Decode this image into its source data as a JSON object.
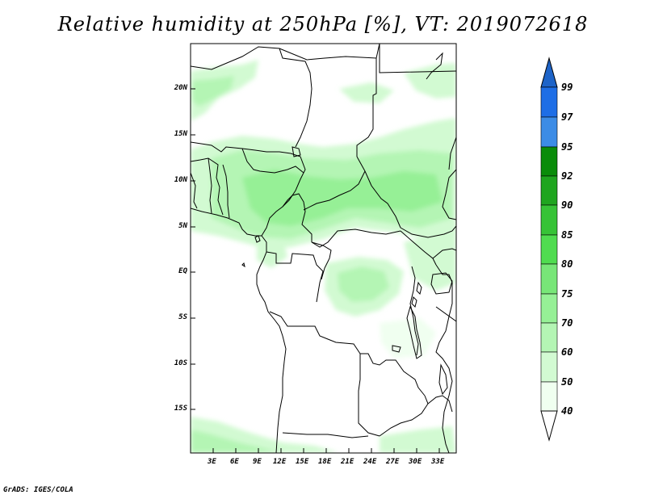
{
  "title": "Relative humidity at 250hPa [%], VT: 2019072618",
  "credit": "GrADS: IGES/COLA",
  "map": {
    "lat_labels": [
      "20N",
      "15N",
      "10N",
      "5N",
      "EQ",
      "5S",
      "10S",
      "15S"
    ],
    "lon_labels": [
      "3E",
      "6E",
      "9E",
      "12E",
      "15E",
      "18E",
      "21E",
      "24E",
      "27E",
      "30E",
      "33E"
    ]
  },
  "colorbar": {
    "labels": [
      "99",
      "97",
      "95",
      "92",
      "90",
      "85",
      "80",
      "75",
      "70",
      "60",
      "50",
      "40"
    ],
    "colors": [
      "#1e64c8",
      "#1e6ee6",
      "#3c8ce6",
      "#0a8c0a",
      "#1fa51f",
      "#37c337",
      "#50dc50",
      "#78e678",
      "#96f096",
      "#b4f5b4",
      "#d2fad2",
      "#f0fff0"
    ]
  }
}
